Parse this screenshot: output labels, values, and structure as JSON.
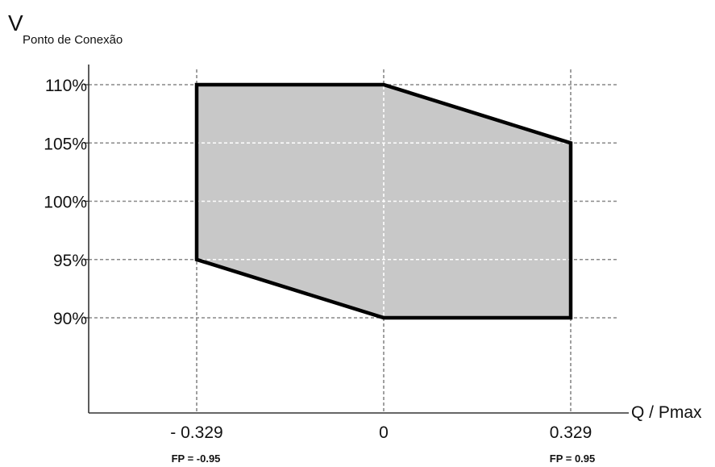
{
  "chart_data": {
    "type": "area",
    "y_axis_label": "V",
    "y_axis_label_subscript": "Ponto de Conexão",
    "x_axis_label": "Q / Pmax",
    "y_ticks": [
      {
        "value": 110,
        "label": "110%"
      },
      {
        "value": 105,
        "label": "105%"
      },
      {
        "value": 100,
        "label": "100%"
      },
      {
        "value": 95,
        "label": "95%"
      },
      {
        "value": 90,
        "label": "90%"
      }
    ],
    "x_ticks": [
      {
        "value": -0.329,
        "label": "- 0.329",
        "sublabel": "FP = -0.95"
      },
      {
        "value": 0,
        "label": "0",
        "sublabel": ""
      },
      {
        "value": 0.329,
        "label": "0.329",
        "sublabel": "FP = 0.95"
      }
    ],
    "region": {
      "points": [
        {
          "x": -0.329,
          "y": 110
        },
        {
          "x": 0,
          "y": 110
        },
        {
          "x": 0.329,
          "y": 105
        },
        {
          "x": 0.329,
          "y": 90
        },
        {
          "x": 0,
          "y": 90
        },
        {
          "x": -0.329,
          "y": 95
        }
      ],
      "fill": "#c8c8c8",
      "stroke": "#000000"
    },
    "grid": true,
    "grid_style": "dashed",
    "colors": {
      "axis": "#333333",
      "grid": "#888888",
      "grid_inside": "#ffffff"
    }
  }
}
